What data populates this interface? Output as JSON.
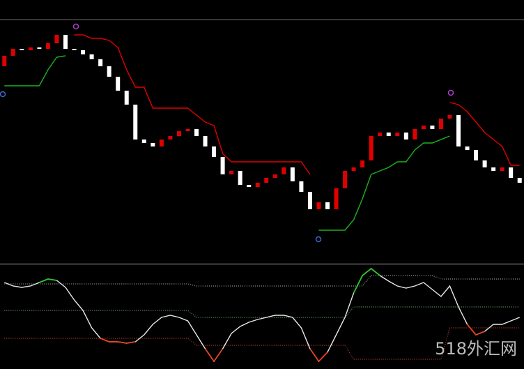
{
  "watermark": "518外汇网",
  "chart_data": [
    {
      "type": "candlestick",
      "open": [
        283,
        298,
        308,
        306,
        310,
        308,
        316,
        328,
        308,
        306,
        300,
        293,
        283,
        268,
        248,
        228,
        178,
        173,
        168,
        178,
        183,
        190,
        193,
        183,
        168,
        153,
        128,
        133,
        113,
        110,
        116,
        123,
        128,
        138,
        118,
        103,
        78,
        88,
        78,
        108,
        133,
        138,
        148,
        183,
        188,
        183,
        188,
        178,
        193,
        198,
        193,
        208,
        213,
        168,
        163,
        148,
        138,
        133,
        138,
        123
      ],
      "close": [
        298,
        308,
        306,
        310,
        308,
        316,
        328,
        308,
        306,
        300,
        293,
        283,
        268,
        248,
        228,
        178,
        173,
        168,
        178,
        183,
        190,
        193,
        183,
        168,
        153,
        128,
        133,
        113,
        110,
        116,
        123,
        128,
        138,
        118,
        103,
        78,
        88,
        78,
        108,
        133,
        138,
        148,
        183,
        188,
        183,
        188,
        178,
        193,
        198,
        193,
        208,
        213,
        168,
        163,
        148,
        138,
        133,
        138,
        123,
        116
      ],
      "up_color": "#e00000",
      "down_color": "#ffffff",
      "ylim": [
        0,
        350
      ],
      "series": [
        {
          "color": "#e00000",
          "values": [
            null,
            null,
            null,
            null,
            null,
            null,
            null,
            null,
            328,
            328,
            323,
            323,
            320,
            310,
            278,
            253,
            253,
            223,
            223,
            223,
            223,
            223,
            213,
            203,
            198,
            158,
            146,
            146,
            146,
            146,
            146,
            146,
            146,
            146,
            146,
            128,
            null,
            null,
            null,
            null,
            null,
            null,
            null,
            null,
            null,
            null,
            null,
            null,
            null,
            null,
            null,
            231,
            228,
            218,
            203,
            188,
            178,
            168,
            141,
            141
          ]
        },
        {
          "color": "#1db31d",
          "values": [
            255,
            255,
            255,
            255,
            255,
            278,
            296,
            298,
            null,
            null,
            null,
            null,
            null,
            null,
            null,
            null,
            null,
            null,
            null,
            null,
            null,
            null,
            null,
            null,
            null,
            null,
            null,
            null,
            null,
            null,
            null,
            null,
            null,
            null,
            null,
            null,
            48,
            48,
            48,
            48,
            63,
            93,
            128,
            133,
            138,
            146,
            146,
            163,
            173,
            173,
            178,
            183,
            null,
            null,
            null,
            null,
            null,
            null,
            null,
            null
          ]
        }
      ]
    },
    {
      "type": "line",
      "ylim": [
        0,
        149
      ],
      "high_color": "#29c729",
      "low_color": "#e8401c",
      "series": [
        {
          "color": "#e8e8e8",
          "values": [
            124,
            119,
            117,
            119,
            124,
            129,
            127,
            117,
            99,
            84,
            59,
            44,
            39,
            39,
            37,
            39,
            49,
            64,
            74,
            77,
            74,
            69,
            49,
            29,
            11,
            29,
            51,
            61,
            67,
            71,
            74,
            77,
            77,
            74,
            59,
            29,
            11,
            24,
            49,
            74,
            109,
            134,
            144,
            134,
            126,
            119,
            116,
            119,
            124,
            114,
            104,
            119,
            89,
            64,
            49,
            54,
            64,
            64,
            69,
            74
          ]
        },
        {
          "color": "#7a8a7a",
          "dotted": true,
          "values": [
            122,
            122,
            122,
            122,
            122,
            122,
            122,
            122,
            122,
            122,
            122,
            122,
            122,
            122,
            122,
            122,
            122,
            122,
            122,
            122,
            122,
            122,
            119,
            119,
            119,
            119,
            119,
            119,
            119,
            119,
            119,
            119,
            119,
            119,
            119,
            119,
            119,
            119,
            119,
            119,
            119,
            119,
            134,
            134,
            134,
            134,
            134,
            134,
            134,
            134,
            129,
            129,
            129,
            129,
            129,
            129,
            129,
            129,
            129,
            129
          ]
        },
        {
          "color": "#5f8a5f",
          "dotted": true,
          "values": [
            84,
            84,
            84,
            84,
            84,
            84,
            84,
            84,
            84,
            84,
            84,
            84,
            84,
            84,
            84,
            84,
            84,
            84,
            84,
            84,
            84,
            84,
            74,
            74,
            74,
            74,
            74,
            74,
            74,
            74,
            74,
            74,
            74,
            74,
            74,
            74,
            74,
            74,
            74,
            74,
            89,
            89,
            89,
            89,
            89,
            89,
            89,
            89,
            89,
            89,
            89,
            89,
            89,
            89,
            89,
            89,
            89,
            89,
            89,
            89
          ]
        },
        {
          "color": "#a03a2a",
          "dotted": true,
          "values": [
            44,
            44,
            44,
            44,
            44,
            44,
            44,
            44,
            44,
            44,
            44,
            44,
            44,
            44,
            44,
            44,
            44,
            44,
            44,
            44,
            44,
            44,
            34,
            34,
            34,
            34,
            34,
            34,
            34,
            34,
            34,
            34,
            34,
            34,
            34,
            34,
            34,
            34,
            34,
            34,
            14,
            14,
            14,
            14,
            14,
            14,
            14,
            14,
            14,
            14,
            14,
            59,
            59,
            59,
            59,
            59,
            59,
            59,
            59,
            59
          ]
        }
      ]
    }
  ]
}
